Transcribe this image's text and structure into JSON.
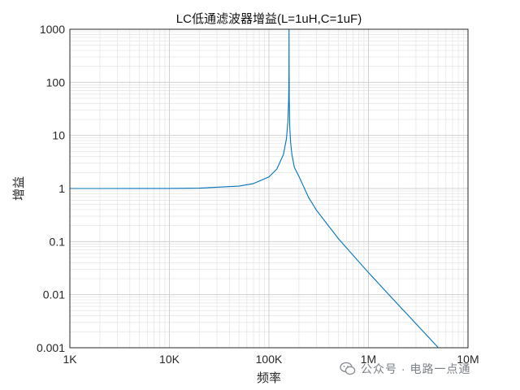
{
  "chart_data": {
    "type": "line",
    "title": "LC低通滤波器增益(L=1uH,C=1uF)",
    "xlabel": "频率",
    "ylabel": "增益",
    "xscale": "log",
    "yscale": "log",
    "xlim": [
      1000,
      10000000
    ],
    "ylim": [
      0.001,
      1000
    ],
    "x_ticks": [
      1000,
      10000,
      100000,
      1000000,
      10000000
    ],
    "x_tick_labels": [
      "1K",
      "10K",
      "100K",
      "1M",
      "10M"
    ],
    "y_ticks": [
      0.001,
      0.01,
      0.1,
      1,
      10,
      100,
      1000
    ],
    "y_tick_labels": [
      "0.001",
      "0.01",
      "0.1",
      "1",
      "10",
      "100",
      "1000"
    ],
    "grid": true,
    "minor_grid": true,
    "series": [
      {
        "color": "#0072BD",
        "x": [
          1000,
          2000,
          5000,
          10000,
          20000,
          50000,
          70000,
          100000,
          120000,
          140000,
          150000,
          155000,
          158000,
          159000,
          159155,
          160000,
          162000,
          165000,
          170000,
          180000,
          200000,
          250000,
          300000,
          500000,
          1000000,
          2000000,
          5000000
        ],
        "y": [
          1.0,
          1.0002,
          1.001,
          1.004,
          1.016,
          1.11,
          1.24,
          1.65,
          2.32,
          4.4,
          8.7,
          18.0,
          50.0,
          155.0,
          1000.0,
          45.0,
          14.0,
          7.5,
          4.4,
          2.5,
          1.7,
          0.68,
          0.39,
          0.113,
          0.026,
          0.0064,
          0.00102
        ]
      }
    ]
  },
  "watermark": {
    "text": "公众号 · 电路一点通",
    "icon": "wechat-icon"
  }
}
